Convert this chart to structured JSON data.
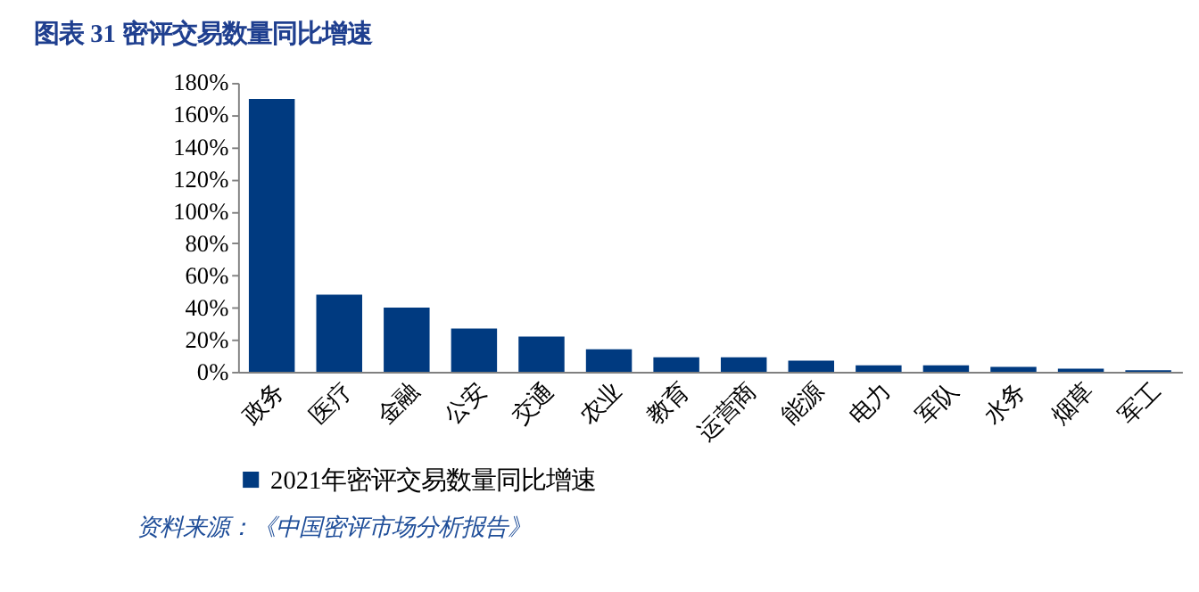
{
  "chart_data": {
    "type": "bar",
    "title": "图表 31  密评交易数量同比增速",
    "categories": [
      "政务",
      "医疗",
      "金融",
      "公安",
      "交通",
      "农业",
      "教育",
      "运营商",
      "能源",
      "电力",
      "军队",
      "水务",
      "烟草",
      "军工"
    ],
    "series": [
      {
        "name": "2021年密评交易数量同比增速",
        "color": "#003a80",
        "values": [
          170,
          48,
          40,
          27,
          22,
          14,
          9,
          9,
          7,
          4,
          4,
          3,
          2,
          1
        ]
      }
    ],
    "ylim": [
      0,
      180
    ],
    "yticks": [
      {
        "value": 0,
        "label": "0%"
      },
      {
        "value": 20,
        "label": "20%"
      },
      {
        "value": 40,
        "label": "40%"
      },
      {
        "value": 60,
        "label": "60%"
      },
      {
        "value": 80,
        "label": "80%"
      },
      {
        "value": 100,
        "label": "100%"
      },
      {
        "value": 120,
        "label": "120%"
      },
      {
        "value": 140,
        "label": "140%"
      },
      {
        "value": 160,
        "label": "160%"
      },
      {
        "value": 180,
        "label": "180%"
      }
    ],
    "grid": false,
    "legend": "bottom",
    "annotations": [
      "资料来源：《中国密评市场分析报告》"
    ]
  }
}
